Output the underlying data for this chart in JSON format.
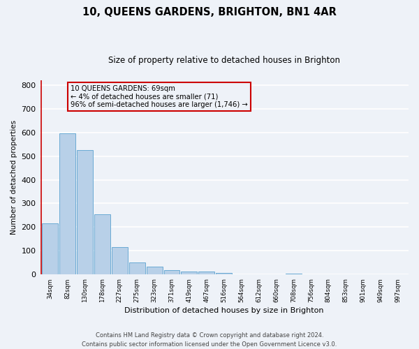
{
  "title": "10, QUEENS GARDENS, BRIGHTON, BN1 4AR",
  "subtitle": "Size of property relative to detached houses in Brighton",
  "xlabel": "Distribution of detached houses by size in Brighton",
  "ylabel": "Number of detached properties",
  "bin_labels": [
    "34sqm",
    "82sqm",
    "130sqm",
    "178sqm",
    "227sqm",
    "275sqm",
    "323sqm",
    "371sqm",
    "419sqm",
    "467sqm",
    "516sqm",
    "564sqm",
    "612sqm",
    "660sqm",
    "708sqm",
    "756sqm",
    "804sqm",
    "853sqm",
    "901sqm",
    "949sqm",
    "997sqm"
  ],
  "bar_heights": [
    215,
    595,
    525,
    255,
    117,
    52,
    33,
    20,
    12,
    12,
    8,
    0,
    0,
    0,
    5,
    0,
    0,
    0,
    0,
    0,
    2
  ],
  "bar_color": "#b8d0e8",
  "bar_edge_color": "#6aaad4",
  "ylim": [
    0,
    820
  ],
  "yticks": [
    0,
    100,
    200,
    300,
    400,
    500,
    600,
    700,
    800
  ],
  "vline_x": -0.5,
  "vline_color": "#cc0000",
  "annotation_text": "10 QUEENS GARDENS: 69sqm\n← 4% of detached houses are smaller (71)\n96% of semi-detached houses are larger (1,746) →",
  "annotation_box_edgecolor": "#cc0000",
  "footer_line1": "Contains HM Land Registry data © Crown copyright and database right 2024.",
  "footer_line2": "Contains public sector information licensed under the Open Government Licence v3.0.",
  "bg_color": "#eef2f8",
  "grid_color": "#ffffff",
  "title_fontsize": 10.5,
  "subtitle_fontsize": 8.5
}
